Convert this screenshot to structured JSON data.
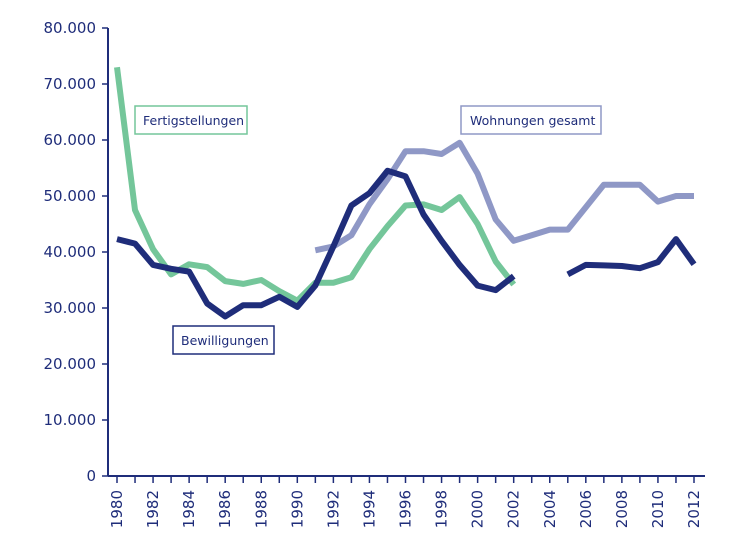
{
  "chart_data": {
    "type": "line",
    "title": "",
    "xlabel": "",
    "ylabel": "",
    "xlim": [
      1979,
      2013
    ],
    "ylim": [
      0,
      80000
    ],
    "x_tick_labels": [
      "1980",
      "1982",
      "1984",
      "1986",
      "1988",
      "1990",
      "1992",
      "1994",
      "1996",
      "1998",
      "2000",
      "2002",
      "2004",
      "2006",
      "2008",
      "2010",
      "2012"
    ],
    "y_tick_labels": [
      "0",
      "10.000",
      "20.000",
      "30.000",
      "40.000",
      "50.000",
      "60.000",
      "70.000",
      "80.000"
    ],
    "series": [
      {
        "name": "Wohnungen gesamt",
        "color": "#8f98c6",
        "x": [
          1991,
          1992,
          1993,
          1994,
          1995,
          1996,
          1997,
          1998,
          1999,
          2000,
          2001,
          2002,
          2003,
          2004,
          2005,
          2006,
          2007,
          2008,
          2009,
          2010,
          2011,
          2012
        ],
        "y": [
          40300,
          41000,
          43000,
          48500,
          53000,
          58000,
          58000,
          57500,
          59500,
          54000,
          45800,
          42000,
          43000,
          44000,
          44000,
          48000,
          52000,
          52000,
          52000,
          49000,
          50000,
          50000
        ]
      },
      {
        "name": "Fertigstellungen",
        "color": "#74c69a",
        "x": [
          1980,
          1981,
          1982,
          1983,
          1984,
          1985,
          1986,
          1987,
          1988,
          1989,
          1990,
          1991,
          1992,
          1993,
          1994,
          1995,
          1996,
          1997,
          1998,
          1999,
          2000,
          2001,
          2002
        ],
        "y": [
          73000,
          47500,
          40500,
          36000,
          37800,
          37300,
          34800,
          34300,
          35000,
          33000,
          31300,
          34500,
          34500,
          35500,
          40500,
          44600,
          48300,
          48500,
          47500,
          49800,
          45000,
          38300,
          34200
        ]
      },
      {
        "name": "Bewilligungen",
        "color": "#1f2d7a",
        "x": [
          1980,
          1981,
          1982,
          1983,
          1984,
          1985,
          1986,
          1987,
          1988,
          1989,
          1990,
          1991,
          1992,
          1993,
          1994,
          1995,
          1996,
          1997,
          1998,
          1999,
          2000,
          2001,
          2002,
          null,
          2005,
          2006,
          2007,
          2008,
          2009,
          2010,
          2011,
          2012
        ],
        "y": [
          42300,
          41500,
          37700,
          37000,
          36500,
          30800,
          28500,
          30500,
          30500,
          32000,
          30200,
          34000,
          41000,
          48300,
          50500,
          54500,
          53500,
          46700,
          42000,
          37700,
          34000,
          33200,
          35700,
          null,
          36000,
          37700,
          37600,
          37500,
          37100,
          38200,
          42300,
          37800
        ]
      }
    ],
    "legend": {
      "fertigstellungen": "Fertigstellungen",
      "wohnungen": "Wohnungen gesamt",
      "bewilligungen": "Bewilligungen"
    },
    "grid": false
  }
}
